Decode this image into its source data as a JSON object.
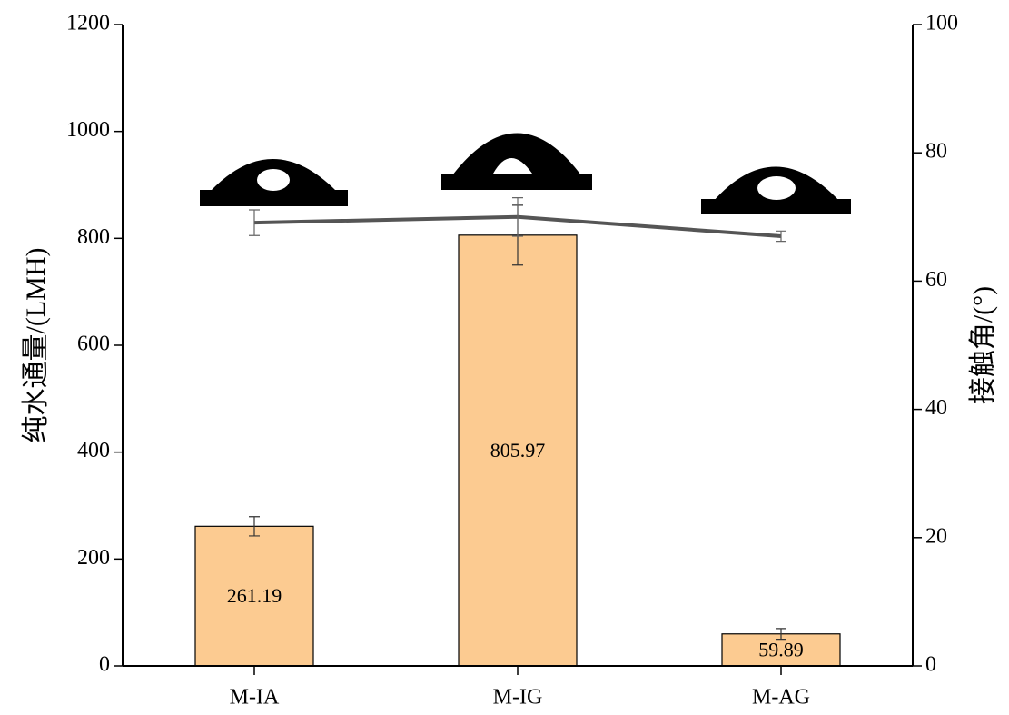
{
  "chart_data": {
    "type": "bar",
    "categories": [
      "M-IA",
      "M-IG",
      "M-AG"
    ],
    "y_label": "纯水通量/(LMH)",
    "y2_label": "接触角/(°)",
    "series": [
      {
        "type": "bar",
        "color": "#fccb91",
        "values": [
          261.19,
          805.97,
          59.89
        ],
        "errors": [
          18,
          56,
          10
        ],
        "value_labels_shown": true
      },
      {
        "type": "line",
        "axis": "y2",
        "color": "#555555",
        "values": [
          69.1,
          70,
          67
        ],
        "errors": [
          2,
          3,
          0.8
        ]
      }
    ],
    "ylim": [
      0,
      1200
    ],
    "yticks": [
      0,
      200,
      400,
      600,
      800,
      1000,
      1200
    ],
    "y2lim": [
      0,
      100
    ],
    "y2ticks": [
      0,
      20,
      40,
      60,
      80,
      100
    ]
  }
}
